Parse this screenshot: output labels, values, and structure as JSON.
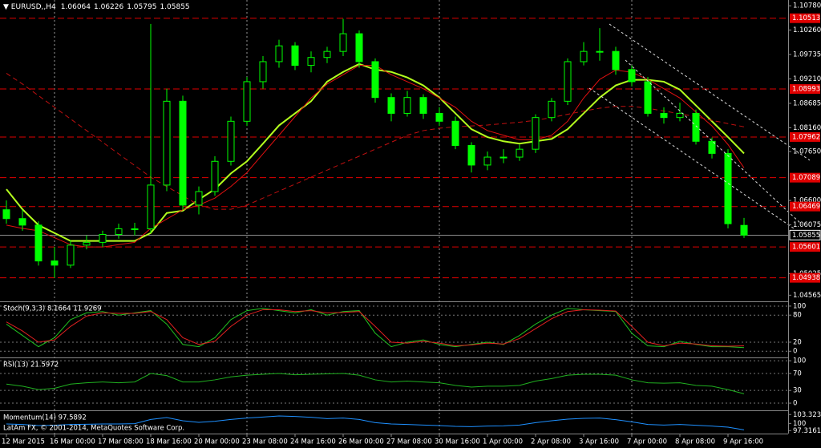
{
  "chart_data": [
    {
      "type": "candlestick",
      "symbol": "EURUSD,,H4",
      "footer": "LatAm FX, © 2001-2014, MetaQuotes Software Corp.",
      "categories": [
        "12 Mar 2015",
        null,
        null,
        "16 Mar 00:00",
        null,
        null,
        "17 Mar 08:00",
        null,
        null,
        "18 Mar 16:00",
        null,
        null,
        "20 Mar 00:00",
        null,
        null,
        "23 Mar 08:00",
        null,
        null,
        "24 Mar 16:00",
        null,
        null,
        "26 Mar 00:00",
        null,
        null,
        "27 Mar 08:00",
        null,
        null,
        "30 Mar 16:00",
        null,
        null,
        "1 Apr 00:00",
        null,
        null,
        "2 Apr 08:00",
        null,
        null,
        "3 Apr 16:00",
        null,
        null,
        "7 Apr 00:00",
        null,
        null,
        "8 Apr 08:00",
        null,
        null,
        "9 Apr 16:00",
        null
      ],
      "candles": [
        [
          1.064,
          1.066,
          1.061,
          1.0621
        ],
        [
          1.0621,
          1.064,
          1.0595,
          1.0607
        ],
        [
          1.0607,
          1.0615,
          1.052,
          1.053
        ],
        [
          1.053,
          1.056,
          1.0494,
          1.0521
        ],
        [
          1.0521,
          1.0575,
          1.0515,
          1.0564
        ],
        [
          1.0564,
          1.0585,
          1.0555,
          1.057
        ],
        [
          1.057,
          1.0595,
          1.056,
          1.0587
        ],
        [
          1.0587,
          1.061,
          1.0578,
          1.0599
        ],
        [
          1.0599,
          1.0612,
          1.0585,
          1.0599
        ],
        [
          1.0599,
          1.1039,
          1.059,
          1.0693
        ],
        [
          1.0693,
          1.09,
          1.068,
          1.0873
        ],
        [
          1.0873,
          1.0885,
          1.064,
          1.065
        ],
        [
          1.065,
          1.069,
          1.063,
          1.0679
        ],
        [
          1.0679,
          1.0755,
          1.067,
          1.0744
        ],
        [
          1.0744,
          1.084,
          1.0735,
          1.083
        ],
        [
          1.083,
          1.0925,
          1.082,
          1.0915
        ],
        [
          1.0915,
          1.097,
          1.09,
          1.0958
        ],
        [
          1.0958,
          1.1005,
          1.0945,
          1.0992
        ],
        [
          1.0992,
          1.1,
          1.094,
          1.095
        ],
        [
          1.095,
          1.098,
          1.0935,
          1.0967
        ],
        [
          1.0967,
          1.099,
          1.0955,
          1.098
        ],
        [
          1.098,
          1.105,
          1.097,
          1.1018
        ],
        [
          1.1018,
          1.1025,
          1.0945,
          1.0958
        ],
        [
          1.0958,
          1.0965,
          1.087,
          1.0881
        ],
        [
          1.0881,
          1.089,
          1.083,
          1.0847
        ],
        [
          1.0847,
          1.0895,
          1.084,
          1.0881
        ],
        [
          1.0881,
          1.0888,
          1.0835,
          1.0847
        ],
        [
          1.0847,
          1.086,
          1.082,
          1.083
        ],
        [
          1.083,
          1.084,
          1.077,
          1.0778
        ],
        [
          1.0778,
          1.0785,
          1.072,
          1.0736
        ],
        [
          1.0736,
          1.0765,
          1.0725,
          1.0753
        ],
        [
          1.0753,
          1.077,
          1.074,
          1.0753
        ],
        [
          1.0753,
          1.078,
          1.0745,
          1.077
        ],
        [
          1.077,
          1.0845,
          1.0762,
          1.0838
        ],
        [
          1.0838,
          1.088,
          1.083,
          1.0873
        ],
        [
          1.0873,
          1.0965,
          1.0865,
          1.0958
        ],
        [
          1.0958,
          1.1,
          1.095,
          1.098
        ],
        [
          1.098,
          1.103,
          1.096,
          1.098
        ],
        [
          1.098,
          1.099,
          1.093,
          1.0941
        ],
        [
          1.0941,
          1.095,
          1.0905,
          1.0915
        ],
        [
          1.0915,
          1.0925,
          1.084,
          1.0847
        ],
        [
          1.0847,
          1.086,
          1.0825,
          1.0838
        ],
        [
          1.0838,
          1.087,
          1.083,
          1.0847
        ],
        [
          1.0847,
          1.0855,
          1.078,
          1.0787
        ],
        [
          1.0787,
          1.0795,
          1.075,
          1.0761
        ],
        [
          1.0761,
          1.077,
          1.06,
          1.061
        ],
        [
          1.06064,
          1.06226,
          1.05795,
          1.05855
        ]
      ],
      "candle_color": "#00ff00",
      "series": [
        {
          "color": "#b4ff1e",
          "style": "solid",
          "values": [
            1.0684,
            1.0641,
            1.0607,
            1.059,
            1.0573,
            1.0573,
            1.0573,
            1.0573,
            1.0573,
            1.059,
            1.0633,
            1.0638,
            1.0662,
            1.0684,
            1.0718,
            1.0744,
            1.0782,
            1.0821,
            1.0847,
            1.0873,
            1.0915,
            1.0936,
            1.0953,
            1.0941,
            1.0936,
            1.0924,
            1.0907,
            1.0881,
            1.0847,
            1.0813,
            1.0796,
            1.0787,
            1.0782,
            1.0787,
            1.0792,
            1.0813,
            1.0847,
            1.0881,
            1.0907,
            1.0919,
            1.0919,
            1.0915,
            1.0898,
            1.0864,
            1.083,
            1.0796,
            1.0761
          ]
        },
        {
          "color": "#e01010",
          "style": "solid",
          "values": [
            1.0607,
            1.06,
            1.0595,
            1.058,
            1.0565,
            1.056,
            1.056,
            1.0565,
            1.057,
            1.06,
            1.062,
            1.064,
            1.065,
            1.0665,
            1.069,
            1.072,
            1.076,
            1.08,
            1.084,
            1.088,
            1.091,
            1.093,
            1.095,
            1.095,
            1.093,
            1.0915,
            1.09,
            1.088,
            1.086,
            1.083,
            1.081,
            1.08,
            1.079,
            1.079,
            1.08,
            1.083,
            1.088,
            1.092,
            1.094,
            1.0935,
            1.092,
            1.09,
            1.088,
            1.085,
            1.082,
            1.078,
            1.073
          ]
        },
        {
          "color": "#c01010",
          "style": "dashed",
          "values": [
            1.0933,
            1.091,
            1.0885,
            1.086,
            1.0835,
            1.081,
            1.0785,
            1.076,
            1.0735,
            1.071,
            1.069,
            1.067,
            1.065,
            1.0641,
            1.0641,
            1.065,
            1.0665,
            1.068,
            1.0695,
            1.071,
            1.0725,
            1.074,
            1.0755,
            1.077,
            1.0785,
            1.08,
            1.081,
            1.0815,
            1.0818,
            1.082,
            1.0822,
            1.0825,
            1.0828,
            1.0832,
            1.0838,
            1.0845,
            1.0852,
            1.0858,
            1.0862,
            1.0862,
            1.0858,
            1.0852,
            1.0846,
            1.084,
            1.0832,
            1.0825,
            1.0818
          ]
        }
      ],
      "levels": {
        "color": "#e00000",
        "values": [
          1.10513,
          1.08993,
          1.07962,
          1.07089,
          1.06469,
          1.05601,
          1.04938
        ]
      },
      "ylim": [
        1.0445,
        1.1087
      ],
      "yticks": [
        {
          "value": 1.1078,
          "label": "1.10780"
        },
        {
          "value": 1.1026,
          "label": "1.10260"
        },
        1.09735,
        {
          "value": 1.0921,
          "label": "1.09210"
        },
        1.08685,
        {
          "value": 1.0816,
          "label": "1.08160"
        },
        {
          "value": 1.0765,
          "label": "1.07650"
        },
        {
          "value": 1.066,
          "label": "1.06600"
        },
        1.06075,
        1.05025,
        1.04565
      ]
    },
    {
      "type": "line",
      "title": "Stoch(9,3,3) 8.1664 11.9269",
      "ylim": [
        -12,
        107
      ],
      "yticks": [
        0,
        20,
        80,
        100
      ],
      "grid": true,
      "series": [
        {
          "color": "#20c020",
          "values": [
            60,
            35,
            10,
            30,
            70,
            85,
            88,
            80,
            85,
            90,
            60,
            15,
            10,
            30,
            70,
            90,
            95,
            90,
            85,
            92,
            80,
            88,
            90,
            40,
            10,
            20,
            25,
            15,
            10,
            15,
            20,
            15,
            35,
            60,
            80,
            95,
            92,
            90,
            88,
            40,
            12,
            10,
            22,
            15,
            10,
            10,
            8
          ]
        },
        {
          "color": "#e02020",
          "values": [
            65,
            45,
            20,
            25,
            55,
            78,
            85,
            84,
            84,
            88,
            70,
            30,
            15,
            22,
            55,
            80,
            92,
            92,
            88,
            90,
            85,
            86,
            88,
            55,
            20,
            18,
            22,
            18,
            12,
            14,
            18,
            16,
            28,
            50,
            72,
            88,
            92,
            91,
            89,
            55,
            20,
            12,
            18,
            16,
            12,
            11,
            12
          ]
        }
      ]
    },
    {
      "type": "line",
      "title": "RSI(13) 21.5972",
      "ylim": [
        -15,
        104
      ],
      "yticks": [
        0,
        30,
        70,
        100
      ],
      "grid": true,
      "series": [
        {
          "color": "#20b020",
          "values": [
            45,
            40,
            32,
            35,
            45,
            48,
            50,
            48,
            50,
            70,
            65,
            50,
            50,
            55,
            62,
            66,
            68,
            70,
            67,
            68,
            69,
            70,
            66,
            55,
            50,
            52,
            50,
            48,
            42,
            38,
            40,
            40,
            42,
            52,
            58,
            66,
            68,
            68,
            66,
            55,
            48,
            47,
            48,
            42,
            40,
            32,
            22
          ]
        }
      ]
    },
    {
      "type": "line",
      "title": "Momentum(14) 97.5892",
      "ylim": [
        96.5,
        104.3
      ],
      "yticks": [
        97.3161,
        100,
        103.3236
      ],
      "grid": false,
      "series": [
        {
          "color": "#1e90ff",
          "values": [
            99.8,
            99.6,
            99.2,
            99.3,
            99.6,
            99.7,
            99.8,
            99.8,
            99.9,
            101.5,
            102.2,
            101,
            100.4,
            100.8,
            101.5,
            102,
            102.4,
            102.8,
            102.6,
            102.3,
            101.8,
            102,
            101.5,
            100.3,
            99.8,
            99.6,
            99.4,
            99.2,
            98.9,
            98.8,
            99,
            99.1,
            99.4,
            100.3,
            101,
            101.6,
            101.9,
            102,
            101.4,
            100.6,
            99.6,
            99.4,
            99.6,
            99.3,
            99,
            98.6,
            97.6
          ]
        }
      ]
    }
  ]
}
